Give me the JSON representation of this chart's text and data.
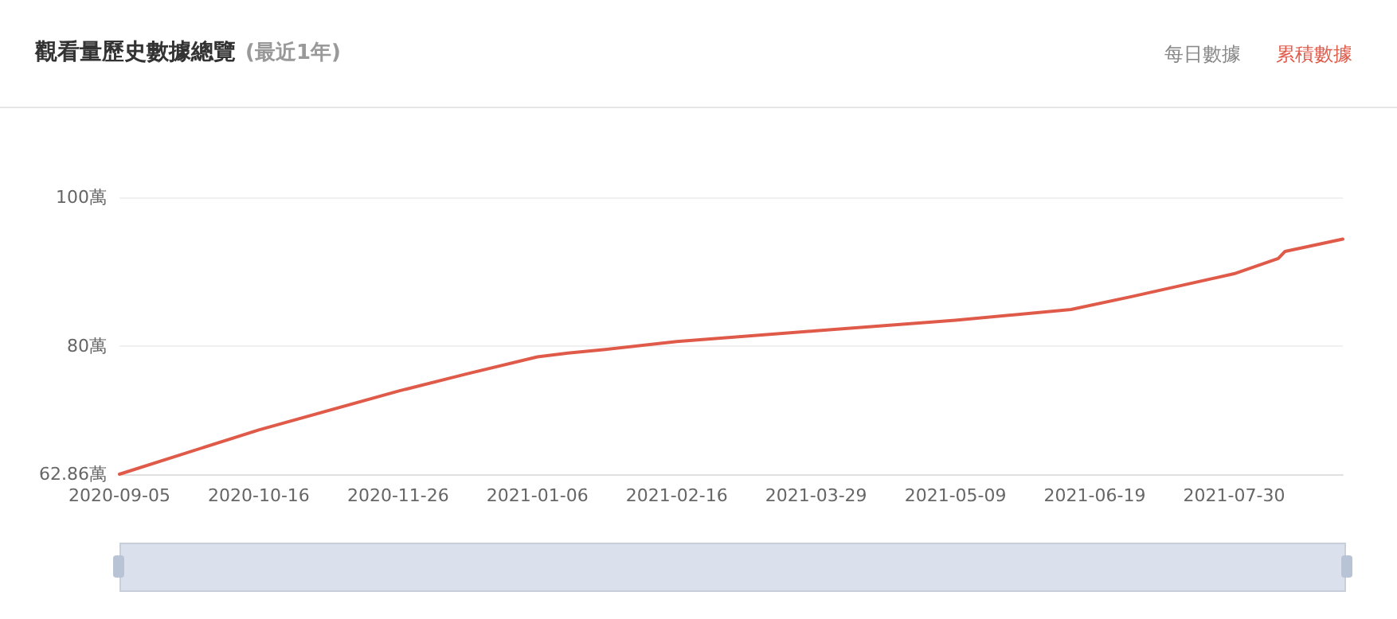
{
  "chart_data": {
    "type": "line",
    "title": "觀看量歷史數據總覽",
    "subtitle": "(最近1年)",
    "annotations": [
      "每日數據",
      "累積數據"
    ],
    "x": [
      "2020-09-05",
      "2020-10-16",
      "2020-11-26",
      "2020-12-16",
      "2021-01-06",
      "2021-01-15",
      "2021-01-26",
      "2021-02-16",
      "2021-03-29",
      "2021-05-09",
      "2021-06-12",
      "2021-06-30",
      "2021-07-30",
      "2021-08-12",
      "2021-08-14",
      "2021-08-31"
    ],
    "series": [
      {
        "color": "#e05a4a",
        "values": [
          62.86,
          68.8,
          74.0,
          76.3,
          78.6,
          79.1,
          79.6,
          80.65,
          82.1,
          83.5,
          84.95,
          86.7,
          89.75,
          91.8,
          92.75,
          94.4
        ]
      }
    ],
    "xlim": [
      "2020-09-05",
      "2021-08-31"
    ],
    "xticks": [
      {
        "value": "2020-09-05",
        "label": "2020-09-05"
      },
      {
        "value": "2020-10-16",
        "label": "2020-10-16"
      },
      {
        "value": "2020-11-26",
        "label": "2020-11-26"
      },
      {
        "value": "2021-01-06",
        "label": "2021-01-06"
      },
      {
        "value": "2021-02-16",
        "label": "2021-02-16"
      },
      {
        "value": "2021-03-29",
        "label": "2021-03-29"
      },
      {
        "value": "2021-05-09",
        "label": "2021-05-09"
      },
      {
        "value": "2021-06-19",
        "label": "2021-06-19"
      },
      {
        "value": "2021-07-30",
        "label": "2021-07-30"
      }
    ],
    "ylim": [
      62.86,
      100
    ],
    "yticks": [
      {
        "value": 62.86,
        "label": "62.86萬"
      },
      {
        "value": 80,
        "label": "80萬"
      },
      {
        "value": 100,
        "label": "100萬"
      }
    ],
    "grid": "y",
    "marker": "none",
    "line_style": "solid"
  }
}
